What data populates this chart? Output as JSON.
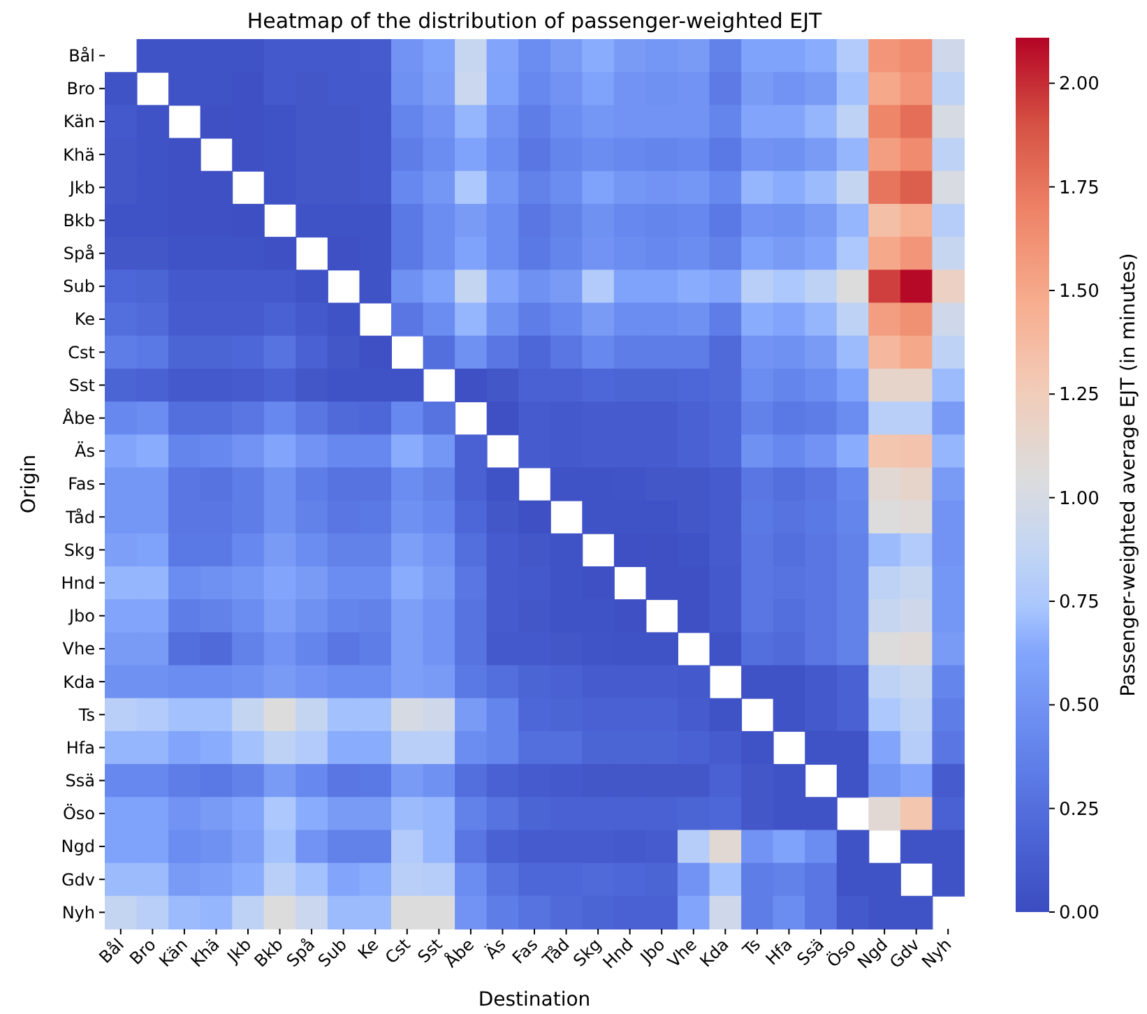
{
  "chart_data": {
    "type": "heatmap",
    "title": "Heatmap of the distribution of passenger-weighted EJT",
    "xlabel": "Destination",
    "ylabel": "Origin",
    "clabel": "Passenger-weighted average EJT (in minutes)",
    "categories": [
      "Bål",
      "Bro",
      "Kän",
      "Khä",
      "Jkb",
      "Bkb",
      "Spå",
      "Sub",
      "Ke",
      "Cst",
      "Sst",
      "Åbe",
      "Äs",
      "Fas",
      "Tåd",
      "Skg",
      "Hnd",
      "Jbo",
      "Vhe",
      "Kda",
      "Ts",
      "Hfa",
      "Ssä",
      "Öso",
      "Ngd",
      "Gdv",
      "Nyh"
    ],
    "y_categories": [
      "Bål",
      "Bro",
      "Kän",
      "Khä",
      "Jkb",
      "Bkb",
      "Spå",
      "Sub",
      "Ke",
      "Cst",
      "Sst",
      "Åbe",
      "Äs",
      "Fas",
      "Tåd",
      "Skg",
      "Hnd",
      "Jbo",
      "Vhe",
      "Kda",
      "Ts",
      "Hfa",
      "Ssä",
      "Öso",
      "Ngd",
      "Gdv",
      "Nyh"
    ],
    "clim": [
      0,
      2.11
    ],
    "cticks": [
      {
        "value": 0,
        "label": "0.00"
      },
      {
        "value": 0.25,
        "label": "0.25"
      },
      {
        "value": 0.5,
        "label": "0.50"
      },
      {
        "value": 0.75,
        "label": "0.75"
      },
      {
        "value": 1,
        "label": "1.00"
      },
      {
        "value": 1.25,
        "label": "1.25"
      },
      {
        "value": 1.5,
        "label": "1.50"
      },
      {
        "value": 1.75,
        "label": "1.75"
      },
      {
        "value": 2,
        "label": "2.00"
      }
    ],
    "cells": [
      [
        null,
        0.05,
        0.05,
        0.05,
        0.05,
        0.1,
        0.1,
        0.1,
        0.12,
        0.5,
        0.6,
        0.9,
        0.62,
        0.45,
        0.55,
        0.65,
        0.55,
        0.52,
        0.55,
        0.38,
        0.6,
        0.6,
        0.65,
        0.78,
        1.6,
        1.65,
        0.95
      ],
      [
        0.05,
        null,
        0.05,
        0.05,
        0.03,
        0.1,
        0.08,
        0.1,
        0.1,
        0.48,
        0.58,
        0.92,
        0.6,
        0.42,
        0.5,
        0.6,
        0.5,
        0.48,
        0.5,
        0.33,
        0.55,
        0.5,
        0.55,
        0.72,
        1.5,
        1.6,
        0.85
      ],
      [
        0.1,
        0.05,
        null,
        0.03,
        0.03,
        0.05,
        0.08,
        0.08,
        0.1,
        0.4,
        0.5,
        0.68,
        0.5,
        0.35,
        0.45,
        0.52,
        0.5,
        0.5,
        0.5,
        0.4,
        0.62,
        0.62,
        0.68,
        0.85,
        1.68,
        1.78,
        1.0
      ],
      [
        0.08,
        0.05,
        0.03,
        null,
        0.03,
        0.05,
        0.08,
        0.08,
        0.1,
        0.35,
        0.45,
        0.6,
        0.45,
        0.3,
        0.4,
        0.45,
        0.42,
        0.4,
        0.42,
        0.32,
        0.5,
        0.48,
        0.55,
        0.68,
        1.55,
        1.65,
        0.85
      ],
      [
        0.08,
        0.05,
        0.03,
        0.03,
        null,
        0.05,
        0.08,
        0.08,
        0.1,
        0.42,
        0.52,
        0.75,
        0.52,
        0.38,
        0.45,
        0.6,
        0.52,
        0.5,
        0.52,
        0.42,
        0.68,
        0.65,
        0.7,
        0.88,
        1.75,
        1.85,
        1.02
      ],
      [
        0.05,
        0.05,
        0.03,
        0.03,
        0.02,
        null,
        0.05,
        0.05,
        0.05,
        0.32,
        0.45,
        0.55,
        0.45,
        0.3,
        0.38,
        0.48,
        0.42,
        0.4,
        0.42,
        0.32,
        0.5,
        0.48,
        0.55,
        0.68,
        1.35,
        1.45,
        0.8
      ],
      [
        0.08,
        0.08,
        0.05,
        0.05,
        0.05,
        0.03,
        null,
        0.03,
        0.05,
        0.32,
        0.45,
        0.6,
        0.45,
        0.32,
        0.4,
        0.5,
        0.45,
        0.42,
        0.45,
        0.38,
        0.6,
        0.55,
        0.62,
        0.75,
        1.5,
        1.6,
        0.9
      ],
      [
        0.2,
        0.18,
        0.1,
        0.1,
        0.1,
        0.1,
        0.05,
        null,
        0.05,
        0.48,
        0.6,
        0.88,
        0.62,
        0.48,
        0.55,
        0.78,
        0.6,
        0.6,
        0.65,
        0.62,
        0.82,
        0.75,
        0.85,
        1.05,
        1.95,
        2.1,
        1.2
      ],
      [
        0.25,
        0.22,
        0.12,
        0.12,
        0.12,
        0.15,
        0.1,
        0.05,
        null,
        0.3,
        0.45,
        0.68,
        0.48,
        0.35,
        0.42,
        0.55,
        0.45,
        0.45,
        0.48,
        0.35,
        0.65,
        0.62,
        0.68,
        0.85,
        1.55,
        1.62,
        0.95
      ],
      [
        0.35,
        0.32,
        0.18,
        0.18,
        0.2,
        0.28,
        0.15,
        0.08,
        0.03,
        null,
        0.25,
        0.48,
        0.3,
        0.2,
        0.3,
        0.42,
        0.35,
        0.35,
        0.35,
        0.22,
        0.5,
        0.48,
        0.55,
        0.7,
        1.4,
        1.5,
        0.85
      ],
      [
        0.18,
        0.15,
        0.1,
        0.1,
        0.12,
        0.15,
        0.08,
        0.05,
        0.05,
        0.05,
        null,
        0.03,
        0.08,
        0.15,
        0.15,
        0.2,
        0.18,
        0.18,
        0.2,
        0.22,
        0.45,
        0.4,
        0.45,
        0.6,
        1.15,
        1.15,
        0.7
      ],
      [
        0.42,
        0.45,
        0.25,
        0.25,
        0.3,
        0.42,
        0.3,
        0.22,
        0.2,
        0.42,
        0.28,
        null,
        0.03,
        0.12,
        0.1,
        0.12,
        0.12,
        0.12,
        0.15,
        0.2,
        0.38,
        0.32,
        0.35,
        0.45,
        0.82,
        0.82,
        0.55
      ],
      [
        0.62,
        0.65,
        0.4,
        0.42,
        0.5,
        0.62,
        0.5,
        0.42,
        0.42,
        0.65,
        0.52,
        0.15,
        null,
        0.12,
        0.1,
        0.12,
        0.12,
        0.12,
        0.15,
        0.2,
        0.48,
        0.42,
        0.5,
        0.65,
        1.3,
        1.32,
        0.68
      ],
      [
        0.52,
        0.52,
        0.3,
        0.28,
        0.35,
        0.48,
        0.35,
        0.28,
        0.28,
        0.45,
        0.38,
        0.15,
        0.05,
        null,
        0.05,
        0.05,
        0.06,
        0.08,
        0.08,
        0.12,
        0.3,
        0.25,
        0.3,
        0.42,
        1.1,
        1.15,
        0.55
      ],
      [
        0.52,
        0.52,
        0.3,
        0.3,
        0.35,
        0.48,
        0.38,
        0.3,
        0.32,
        0.48,
        0.42,
        0.2,
        0.08,
        0.03,
        null,
        0.05,
        0.05,
        0.05,
        0.08,
        0.12,
        0.32,
        0.28,
        0.32,
        0.4,
        1.05,
        1.08,
        0.5
      ],
      [
        0.58,
        0.6,
        0.32,
        0.32,
        0.42,
        0.55,
        0.45,
        0.38,
        0.38,
        0.58,
        0.5,
        0.25,
        0.12,
        0.08,
        0.05,
        null,
        0.03,
        0.03,
        0.05,
        0.12,
        0.3,
        0.25,
        0.3,
        0.38,
        0.7,
        0.78,
        0.5
      ],
      [
        0.68,
        0.68,
        0.45,
        0.48,
        0.52,
        0.62,
        0.55,
        0.45,
        0.45,
        0.65,
        0.55,
        0.3,
        0.12,
        0.1,
        0.05,
        0.03,
        null,
        0.03,
        0.03,
        0.1,
        0.3,
        0.28,
        0.3,
        0.38,
        0.85,
        0.9,
        0.52
      ],
      [
        0.62,
        0.62,
        0.35,
        0.38,
        0.45,
        0.58,
        0.48,
        0.4,
        0.38,
        0.58,
        0.5,
        0.28,
        0.12,
        0.08,
        0.05,
        0.05,
        0.03,
        null,
        0.03,
        0.1,
        0.3,
        0.25,
        0.3,
        0.38,
        0.9,
        0.95,
        0.52
      ],
      [
        0.55,
        0.55,
        0.25,
        0.22,
        0.38,
        0.5,
        0.4,
        0.3,
        0.35,
        0.58,
        0.5,
        0.28,
        0.1,
        0.1,
        0.08,
        0.06,
        0.05,
        0.05,
        null,
        0.05,
        0.25,
        0.22,
        0.3,
        0.38,
        1.05,
        1.08,
        0.55
      ],
      [
        0.48,
        0.48,
        0.45,
        0.45,
        0.48,
        0.55,
        0.5,
        0.45,
        0.45,
        0.58,
        0.55,
        0.32,
        0.25,
        0.18,
        0.15,
        0.12,
        0.12,
        0.12,
        0.1,
        null,
        0.05,
        0.05,
        0.1,
        0.15,
        0.85,
        0.9,
        0.4
      ],
      [
        0.82,
        0.78,
        0.72,
        0.72,
        0.88,
        1.05,
        0.88,
        0.72,
        0.72,
        1.0,
        0.95,
        0.55,
        0.4,
        0.2,
        0.18,
        0.15,
        0.15,
        0.15,
        0.12,
        0.05,
        null,
        0.05,
        0.1,
        0.15,
        0.75,
        0.85,
        0.35
      ],
      [
        0.68,
        0.68,
        0.62,
        0.65,
        0.72,
        0.85,
        0.78,
        0.65,
        0.65,
        0.82,
        0.82,
        0.45,
        0.4,
        0.25,
        0.25,
        0.18,
        0.18,
        0.18,
        0.15,
        0.12,
        0.05,
        null,
        0.05,
        0.05,
        0.62,
        0.8,
        0.3
      ],
      [
        0.42,
        0.42,
        0.35,
        0.32,
        0.38,
        0.55,
        0.42,
        0.3,
        0.32,
        0.55,
        0.48,
        0.25,
        0.15,
        0.12,
        0.1,
        0.08,
        0.08,
        0.08,
        0.08,
        0.15,
        0.08,
        0.05,
        null,
        0.05,
        0.52,
        0.62,
        0.12
      ],
      [
        0.6,
        0.6,
        0.5,
        0.55,
        0.62,
        0.75,
        0.65,
        0.55,
        0.55,
        0.7,
        0.68,
        0.38,
        0.28,
        0.18,
        0.15,
        0.15,
        0.15,
        0.15,
        0.18,
        0.2,
        0.08,
        0.05,
        0.05,
        null,
        1.1,
        1.3,
        0.15
      ],
      [
        0.6,
        0.6,
        0.45,
        0.48,
        0.58,
        0.72,
        0.5,
        0.38,
        0.38,
        0.78,
        0.68,
        0.3,
        0.15,
        0.12,
        0.12,
        0.12,
        0.1,
        0.12,
        0.8,
        1.1,
        0.5,
        0.6,
        0.45,
        0.05,
        null,
        0.05,
        0.05
      ],
      [
        0.7,
        0.7,
        0.55,
        0.58,
        0.65,
        0.82,
        0.72,
        0.62,
        0.65,
        0.82,
        0.8,
        0.45,
        0.28,
        0.2,
        0.2,
        0.22,
        0.2,
        0.18,
        0.5,
        0.72,
        0.35,
        0.38,
        0.3,
        0.05,
        0.05,
        null,
        0.05
      ],
      [
        0.88,
        0.82,
        0.7,
        0.68,
        0.85,
        1.05,
        0.92,
        0.7,
        0.7,
        1.05,
        1.05,
        0.5,
        0.35,
        0.28,
        0.22,
        0.18,
        0.15,
        0.15,
        0.62,
        0.95,
        0.35,
        0.45,
        0.3,
        0.1,
        0.05,
        0.05,
        null
      ]
    ]
  }
}
